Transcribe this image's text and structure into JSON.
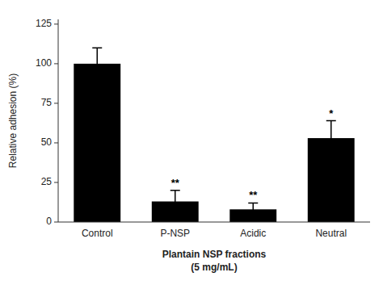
{
  "chart_data": {
    "type": "bar",
    "categories": [
      "Control",
      "P-NSP",
      "Acidic",
      "Neutral"
    ],
    "values": [
      100,
      13,
      8,
      53
    ],
    "errors": [
      10,
      7,
      4,
      11
    ],
    "significance": [
      null,
      "**",
      "**",
      "*"
    ],
    "color": "#000000",
    "ylabel": "Relative adhesion (%)",
    "xlabel": [
      "Plantain NSP fractions",
      "(5 mg/mL)"
    ],
    "ylim": [
      0,
      128
    ],
    "yticks": [
      0,
      25,
      50,
      75,
      100,
      125
    ],
    "grid": false
  }
}
